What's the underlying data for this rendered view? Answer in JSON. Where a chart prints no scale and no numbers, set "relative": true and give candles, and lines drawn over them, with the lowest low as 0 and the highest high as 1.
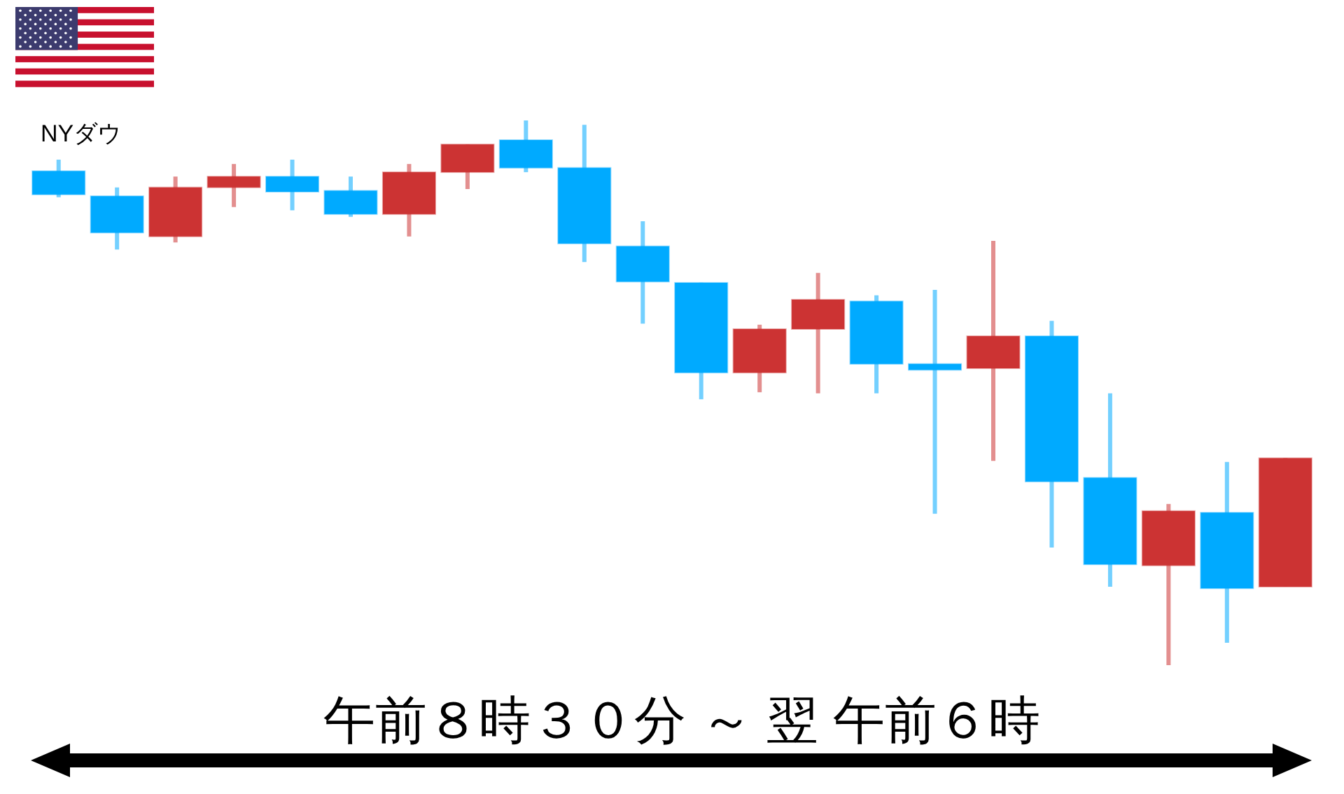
{
  "chart_data": {
    "type": "candlestick",
    "title": "NYダウ",
    "relative": true,
    "categories": [
      null,
      null,
      null,
      null,
      null,
      null,
      null,
      null,
      null,
      null,
      null,
      null,
      null,
      null,
      null,
      null,
      null,
      null,
      null,
      null,
      null,
      null
    ],
    "ohlc": [
      [
        0.907,
        0.928,
        0.859,
        0.864
      ],
      [
        0.861,
        0.877,
        0.763,
        0.794
      ],
      [
        0.787,
        0.897,
        0.776,
        0.877
      ],
      [
        0.877,
        0.92,
        0.841,
        0.897
      ],
      [
        0.897,
        0.928,
        0.835,
        0.869
      ],
      [
        0.871,
        0.897,
        0.823,
        0.828
      ],
      [
        0.828,
        0.92,
        0.787,
        0.905
      ],
      [
        0.905,
        0.956,
        0.874,
        0.956
      ],
      [
        0.964,
        1.0,
        0.905,
        0.913
      ],
      [
        0.913,
        0.992,
        0.74,
        0.774
      ],
      [
        0.769,
        0.815,
        0.627,
        0.704
      ],
      [
        0.702,
        0.702,
        0.488,
        0.537
      ],
      [
        0.537,
        0.625,
        0.501,
        0.617
      ],
      [
        0.617,
        0.72,
        0.499,
        0.671
      ],
      [
        0.668,
        0.679,
        0.499,
        0.553
      ],
      [
        0.553,
        0.689,
        0.278,
        0.542
      ],
      [
        0.545,
        0.779,
        0.375,
        0.604
      ],
      [
        0.604,
        0.632,
        0.216,
        0.337
      ],
      [
        0.344,
        0.499,
        0.144,
        0.185
      ],
      [
        0.183,
        0.296,
        0.0,
        0.283
      ],
      [
        0.28,
        0.373,
        0.041,
        0.141
      ],
      [
        0.144,
        0.38,
        0.144,
        0.38
      ]
    ],
    "colors": [
      "#00aaff",
      "#00aaff",
      "#cc3333",
      "#cc3333",
      "#00aaff",
      "#00aaff",
      "#cc3333",
      "#cc3333",
      "#00aaff",
      "#00aaff",
      "#00aaff",
      "#00aaff",
      "#cc3333",
      "#cc3333",
      "#00aaff",
      "#00aaff",
      "#cc3333",
      "#00aaff",
      "#00aaff",
      "#cc3333",
      "#00aaff",
      "#cc3333"
    ],
    "annotations": [
      "午前８時３０分 ～ 翌 午前６時"
    ]
  }
}
